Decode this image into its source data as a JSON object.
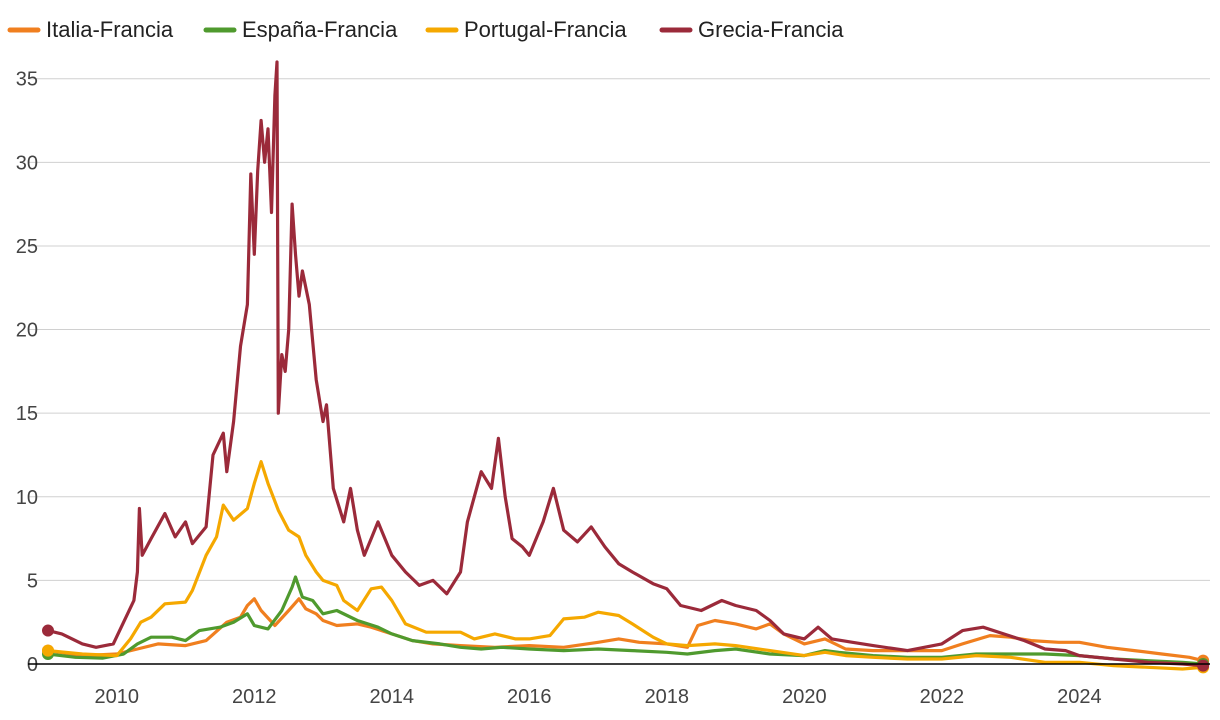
{
  "chart_data": {
    "type": "line",
    "title": "",
    "xlabel": "",
    "ylabel": "",
    "xlim": [
      2009.0,
      2025.9
    ],
    "ylim": [
      0,
      36
    ],
    "y_ticks": [
      0,
      5,
      10,
      15,
      20,
      25,
      30,
      35
    ],
    "x_ticks": [
      2010,
      2012,
      2014,
      2016,
      2018,
      2020,
      2022,
      2024
    ],
    "grid": "horizontal",
    "legend_position": "top-left",
    "series": [
      {
        "name": "Italia-Francia",
        "color": "#f07f1f",
        "points": [
          [
            2009.0,
            0.8
          ],
          [
            2009.5,
            0.5
          ],
          [
            2010.0,
            0.6
          ],
          [
            2010.3,
            0.9
          ],
          [
            2010.6,
            1.2
          ],
          [
            2011.0,
            1.1
          ],
          [
            2011.3,
            1.4
          ],
          [
            2011.6,
            2.5
          ],
          [
            2011.8,
            2.8
          ],
          [
            2011.9,
            3.5
          ],
          [
            2012.0,
            3.9
          ],
          [
            2012.1,
            3.2
          ],
          [
            2012.3,
            2.3
          ],
          [
            2012.5,
            3.2
          ],
          [
            2012.65,
            3.9
          ],
          [
            2012.75,
            3.3
          ],
          [
            2012.9,
            3.0
          ],
          [
            2013.0,
            2.6
          ],
          [
            2013.2,
            2.3
          ],
          [
            2013.5,
            2.4
          ],
          [
            2013.7,
            2.2
          ],
          [
            2014.0,
            1.8
          ],
          [
            2014.3,
            1.4
          ],
          [
            2014.6,
            1.2
          ],
          [
            2015.0,
            1.1
          ],
          [
            2015.5,
            1.0
          ],
          [
            2016.0,
            1.1
          ],
          [
            2016.5,
            1.0
          ],
          [
            2017.0,
            1.3
          ],
          [
            2017.3,
            1.5
          ],
          [
            2017.6,
            1.3
          ],
          [
            2018.0,
            1.2
          ],
          [
            2018.3,
            1.0
          ],
          [
            2018.45,
            2.3
          ],
          [
            2018.7,
            2.6
          ],
          [
            2019.0,
            2.4
          ],
          [
            2019.3,
            2.1
          ],
          [
            2019.5,
            2.4
          ],
          [
            2019.7,
            1.8
          ],
          [
            2020.0,
            1.2
          ],
          [
            2020.3,
            1.5
          ],
          [
            2020.6,
            0.9
          ],
          [
            2021.0,
            0.8
          ],
          [
            2021.5,
            0.8
          ],
          [
            2022.0,
            0.8
          ],
          [
            2022.3,
            1.2
          ],
          [
            2022.7,
            1.7
          ],
          [
            2023.0,
            1.6
          ],
          [
            2023.3,
            1.4
          ],
          [
            2023.7,
            1.3
          ],
          [
            2024.0,
            1.3
          ],
          [
            2024.4,
            1.0
          ],
          [
            2024.8,
            0.8
          ],
          [
            2025.2,
            0.6
          ],
          [
            2025.6,
            0.4
          ],
          [
            2025.8,
            0.2
          ]
        ]
      },
      {
        "name": "España-Francia",
        "color": "#4f9a2e",
        "points": [
          [
            2009.0,
            0.6
          ],
          [
            2009.4,
            0.4
          ],
          [
            2009.8,
            0.35
          ],
          [
            2010.1,
            0.6
          ],
          [
            2010.3,
            1.2
          ],
          [
            2010.5,
            1.6
          ],
          [
            2010.8,
            1.6
          ],
          [
            2011.0,
            1.4
          ],
          [
            2011.2,
            2.0
          ],
          [
            2011.5,
            2.2
          ],
          [
            2011.7,
            2.5
          ],
          [
            2011.9,
            3.0
          ],
          [
            2012.0,
            2.3
          ],
          [
            2012.2,
            2.1
          ],
          [
            2012.4,
            3.2
          ],
          [
            2012.55,
            4.6
          ],
          [
            2012.6,
            5.2
          ],
          [
            2012.7,
            4.0
          ],
          [
            2012.85,
            3.8
          ],
          [
            2013.0,
            3.0
          ],
          [
            2013.2,
            3.2
          ],
          [
            2013.5,
            2.6
          ],
          [
            2013.8,
            2.2
          ],
          [
            2014.0,
            1.8
          ],
          [
            2014.3,
            1.4
          ],
          [
            2014.7,
            1.2
          ],
          [
            2015.0,
            1.0
          ],
          [
            2015.3,
            0.9
          ],
          [
            2015.6,
            1.0
          ],
          [
            2016.0,
            0.9
          ],
          [
            2016.5,
            0.8
          ],
          [
            2017.0,
            0.9
          ],
          [
            2017.5,
            0.8
          ],
          [
            2018.0,
            0.7
          ],
          [
            2018.3,
            0.6
          ],
          [
            2018.7,
            0.8
          ],
          [
            2019.0,
            0.9
          ],
          [
            2019.5,
            0.6
          ],
          [
            2020.0,
            0.5
          ],
          [
            2020.3,
            0.8
          ],
          [
            2020.5,
            0.7
          ],
          [
            2021.0,
            0.5
          ],
          [
            2021.5,
            0.4
          ],
          [
            2022.0,
            0.4
          ],
          [
            2022.5,
            0.6
          ],
          [
            2023.0,
            0.6
          ],
          [
            2023.5,
            0.6
          ],
          [
            2024.0,
            0.5
          ],
          [
            2024.5,
            0.3
          ],
          [
            2025.0,
            0.2
          ],
          [
            2025.5,
            0.1
          ],
          [
            2025.8,
            0.0
          ]
        ]
      },
      {
        "name": "Portugal-Francia",
        "color": "#f5a800",
        "points": [
          [
            2009.0,
            0.8
          ],
          [
            2009.5,
            0.6
          ],
          [
            2010.0,
            0.5
          ],
          [
            2010.2,
            1.5
          ],
          [
            2010.35,
            2.5
          ],
          [
            2010.5,
            2.8
          ],
          [
            2010.7,
            3.6
          ],
          [
            2011.0,
            3.7
          ],
          [
            2011.1,
            4.4
          ],
          [
            2011.3,
            6.5
          ],
          [
            2011.45,
            7.6
          ],
          [
            2011.55,
            9.5
          ],
          [
            2011.7,
            8.6
          ],
          [
            2011.9,
            9.3
          ],
          [
            2012.0,
            10.8
          ],
          [
            2012.1,
            12.1
          ],
          [
            2012.2,
            10.8
          ],
          [
            2012.35,
            9.2
          ],
          [
            2012.5,
            8.0
          ],
          [
            2012.65,
            7.6
          ],
          [
            2012.75,
            6.5
          ],
          [
            2012.9,
            5.5
          ],
          [
            2013.0,
            5.0
          ],
          [
            2013.2,
            4.7
          ],
          [
            2013.3,
            3.8
          ],
          [
            2013.5,
            3.2
          ],
          [
            2013.7,
            4.5
          ],
          [
            2013.85,
            4.6
          ],
          [
            2014.0,
            3.8
          ],
          [
            2014.2,
            2.4
          ],
          [
            2014.5,
            1.9
          ],
          [
            2015.0,
            1.9
          ],
          [
            2015.2,
            1.5
          ],
          [
            2015.5,
            1.8
          ],
          [
            2015.8,
            1.5
          ],
          [
            2016.0,
            1.5
          ],
          [
            2016.3,
            1.7
          ],
          [
            2016.5,
            2.7
          ],
          [
            2016.8,
            2.8
          ],
          [
            2017.0,
            3.1
          ],
          [
            2017.3,
            2.9
          ],
          [
            2017.5,
            2.4
          ],
          [
            2017.8,
            1.6
          ],
          [
            2018.0,
            1.2
          ],
          [
            2018.3,
            1.1
          ],
          [
            2018.7,
            1.2
          ],
          [
            2019.0,
            1.1
          ],
          [
            2019.5,
            0.8
          ],
          [
            2020.0,
            0.5
          ],
          [
            2020.3,
            0.7
          ],
          [
            2020.6,
            0.5
          ],
          [
            2021.0,
            0.4
          ],
          [
            2021.5,
            0.3
          ],
          [
            2022.0,
            0.3
          ],
          [
            2022.5,
            0.5
          ],
          [
            2023.0,
            0.4
          ],
          [
            2023.5,
            0.1
          ],
          [
            2024.0,
            0.1
          ],
          [
            2024.5,
            -0.1
          ],
          [
            2025.0,
            -0.2
          ],
          [
            2025.5,
            -0.3
          ],
          [
            2025.8,
            -0.2
          ]
        ]
      },
      {
        "name": "Grecia-Francia",
        "color": "#9b2a3a",
        "points": [
          [
            2009.0,
            2.0
          ],
          [
            2009.2,
            1.8
          ],
          [
            2009.5,
            1.2
          ],
          [
            2009.7,
            1.0
          ],
          [
            2009.95,
            1.2
          ],
          [
            2010.1,
            2.5
          ],
          [
            2010.25,
            3.8
          ],
          [
            2010.3,
            5.5
          ],
          [
            2010.33,
            9.3
          ],
          [
            2010.37,
            6.5
          ],
          [
            2010.5,
            7.5
          ],
          [
            2010.7,
            9.0
          ],
          [
            2010.85,
            7.6
          ],
          [
            2011.0,
            8.5
          ],
          [
            2011.1,
            7.2
          ],
          [
            2011.3,
            8.2
          ],
          [
            2011.4,
            12.5
          ],
          [
            2011.55,
            13.8
          ],
          [
            2011.6,
            11.5
          ],
          [
            2011.7,
            14.5
          ],
          [
            2011.8,
            19.0
          ],
          [
            2011.9,
            21.5
          ],
          [
            2011.95,
            29.3
          ],
          [
            2012.0,
            24.5
          ],
          [
            2012.05,
            29.5
          ],
          [
            2012.1,
            32.5
          ],
          [
            2012.15,
            30.0
          ],
          [
            2012.2,
            32.0
          ],
          [
            2012.25,
            27.0
          ],
          [
            2012.3,
            34.0
          ],
          [
            2012.33,
            36.0
          ],
          [
            2012.35,
            15.0
          ],
          [
            2012.4,
            18.5
          ],
          [
            2012.45,
            17.5
          ],
          [
            2012.5,
            20.0
          ],
          [
            2012.55,
            27.5
          ],
          [
            2012.6,
            24.5
          ],
          [
            2012.65,
            22.0
          ],
          [
            2012.7,
            23.5
          ],
          [
            2012.8,
            21.5
          ],
          [
            2012.9,
            17.0
          ],
          [
            2013.0,
            14.5
          ],
          [
            2013.05,
            15.5
          ],
          [
            2013.15,
            10.5
          ],
          [
            2013.3,
            8.5
          ],
          [
            2013.4,
            10.5
          ],
          [
            2013.5,
            8.0
          ],
          [
            2013.6,
            6.5
          ],
          [
            2013.7,
            7.5
          ],
          [
            2013.8,
            8.5
          ],
          [
            2014.0,
            6.5
          ],
          [
            2014.2,
            5.5
          ],
          [
            2014.4,
            4.7
          ],
          [
            2014.6,
            5.0
          ],
          [
            2014.8,
            4.2
          ],
          [
            2015.0,
            5.5
          ],
          [
            2015.1,
            8.5
          ],
          [
            2015.3,
            11.5
          ],
          [
            2015.45,
            10.5
          ],
          [
            2015.55,
            13.5
          ],
          [
            2015.65,
            10.0
          ],
          [
            2015.75,
            7.5
          ],
          [
            2015.9,
            7.0
          ],
          [
            2016.0,
            6.5
          ],
          [
            2016.2,
            8.5
          ],
          [
            2016.35,
            10.5
          ],
          [
            2016.5,
            8.0
          ],
          [
            2016.7,
            7.3
          ],
          [
            2016.9,
            8.2
          ],
          [
            2017.1,
            7.0
          ],
          [
            2017.3,
            6.0
          ],
          [
            2017.5,
            5.5
          ],
          [
            2017.8,
            4.8
          ],
          [
            2018.0,
            4.5
          ],
          [
            2018.2,
            3.5
          ],
          [
            2018.5,
            3.2
          ],
          [
            2018.8,
            3.8
          ],
          [
            2019.0,
            3.5
          ],
          [
            2019.3,
            3.2
          ],
          [
            2019.5,
            2.6
          ],
          [
            2019.7,
            1.8
          ],
          [
            2020.0,
            1.5
          ],
          [
            2020.2,
            2.2
          ],
          [
            2020.4,
            1.5
          ],
          [
            2020.7,
            1.3
          ],
          [
            2021.0,
            1.1
          ],
          [
            2021.5,
            0.8
          ],
          [
            2022.0,
            1.2
          ],
          [
            2022.3,
            2.0
          ],
          [
            2022.6,
            2.2
          ],
          [
            2022.9,
            1.8
          ],
          [
            2023.2,
            1.4
          ],
          [
            2023.5,
            0.9
          ],
          [
            2023.8,
            0.8
          ],
          [
            2024.0,
            0.5
          ],
          [
            2024.5,
            0.3
          ],
          [
            2025.0,
            0.1
          ],
          [
            2025.5,
            0.0
          ],
          [
            2025.8,
            -0.1
          ]
        ]
      }
    ]
  }
}
